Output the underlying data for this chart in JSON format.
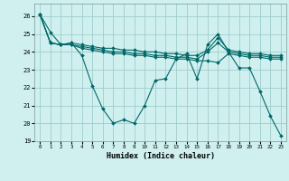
{
  "xlabel": "Humidex (Indice chaleur)",
  "bg_color": "#d0f0f0",
  "line_color": "#006868",
  "grid_color": "#a0cccc",
  "xlim": [
    -0.5,
    23.5
  ],
  "ylim": [
    19,
    26.7
  ],
  "yticks": [
    19,
    20,
    21,
    22,
    23,
    24,
    25,
    26
  ],
  "xticks": [
    0,
    1,
    2,
    3,
    4,
    5,
    6,
    7,
    8,
    9,
    10,
    11,
    12,
    13,
    14,
    15,
    16,
    17,
    18,
    19,
    20,
    21,
    22,
    23
  ],
  "series": [
    [
      26.1,
      25.1,
      24.4,
      24.5,
      23.8,
      22.1,
      20.8,
      20.0,
      20.2,
      20.0,
      21.0,
      22.4,
      22.5,
      23.6,
      23.9,
      22.5,
      24.4,
      25.0,
      24.0,
      23.1,
      23.1,
      21.8,
      20.4,
      19.3
    ],
    [
      26.1,
      24.5,
      24.4,
      24.4,
      24.2,
      24.1,
      24.0,
      23.9,
      23.9,
      23.8,
      23.8,
      23.7,
      23.7,
      23.6,
      23.6,
      23.5,
      23.5,
      23.4,
      23.9,
      23.8,
      23.7,
      23.7,
      23.6,
      23.6
    ],
    [
      26.1,
      24.5,
      24.4,
      24.4,
      24.3,
      24.2,
      24.1,
      24.0,
      24.0,
      23.9,
      23.9,
      23.8,
      23.8,
      23.7,
      23.7,
      23.6,
      24.0,
      24.5,
      24.0,
      23.9,
      23.8,
      23.8,
      23.7,
      23.7
    ],
    [
      26.1,
      24.5,
      24.4,
      24.5,
      24.4,
      24.3,
      24.2,
      24.2,
      24.1,
      24.1,
      24.0,
      24.0,
      23.9,
      23.9,
      23.8,
      23.8,
      24.1,
      24.8,
      24.1,
      24.0,
      23.9,
      23.9,
      23.8,
      23.8
    ]
  ]
}
